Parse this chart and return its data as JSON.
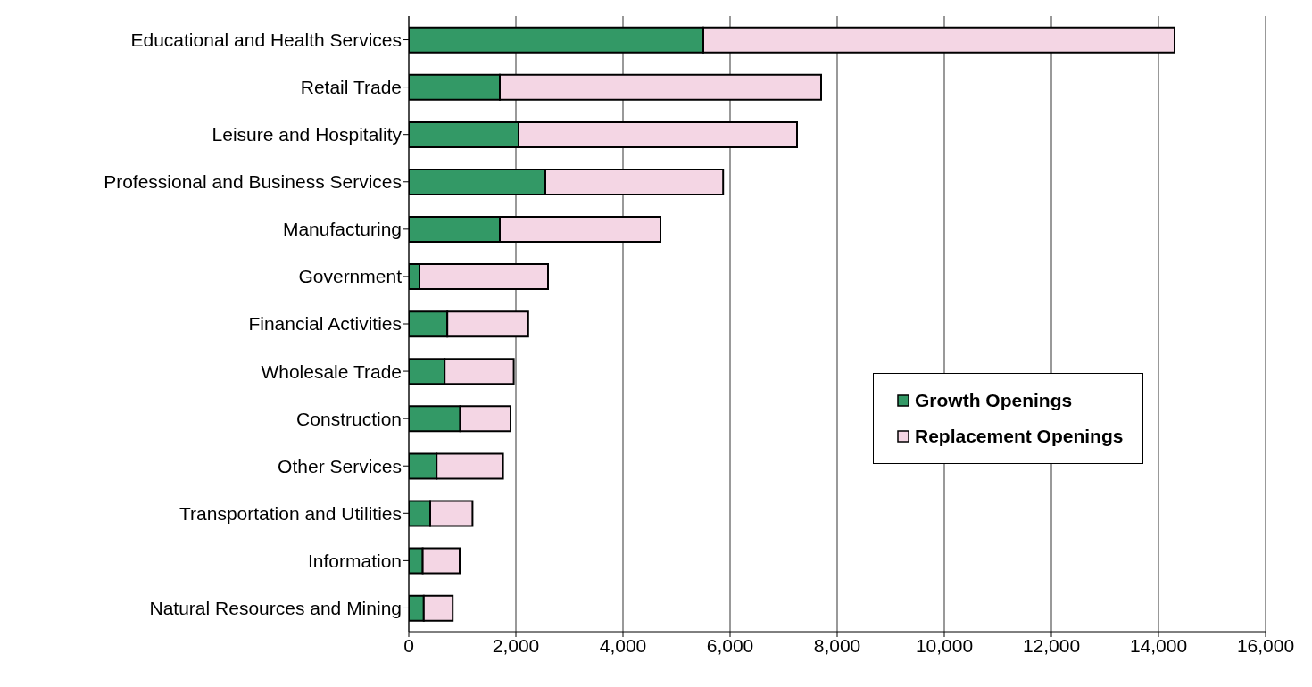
{
  "chart_data": {
    "type": "bar",
    "orientation": "horizontal",
    "stacked": true,
    "categories": [
      "Educational and Health Services",
      "Retail Trade",
      "Leisure and Hospitality",
      "Professional and Business Services",
      "Manufacturing",
      "Government",
      "Financial Activities",
      "Wholesale Trade",
      "Construction",
      "Other Services",
      "Transportation and Utilities",
      "Information",
      "Natural Resources and Mining"
    ],
    "series": [
      {
        "name": "Growth Openings",
        "color": "#339966",
        "values": [
          5500,
          1700,
          2050,
          2550,
          1700,
          200,
          720,
          670,
          960,
          520,
          400,
          260,
          280
        ]
      },
      {
        "name": "Replacement Openings",
        "color": "#f4d6e4",
        "values": [
          8800,
          6000,
          5200,
          3320,
          3000,
          2400,
          1510,
          1290,
          940,
          1240,
          790,
          690,
          540
        ]
      }
    ],
    "xlim": [
      0,
      16000
    ],
    "xticks": [
      0,
      {
        "value": 2000,
        "label": "2,000"
      },
      {
        "value": 4000,
        "label": "4,000"
      },
      {
        "value": 6000,
        "label": "6,000"
      },
      {
        "value": 8000,
        "label": "8,000"
      },
      {
        "value": 10000,
        "label": "10,000"
      },
      {
        "value": 12000,
        "label": "12,000"
      },
      {
        "value": 14000,
        "label": "14,000"
      },
      {
        "value": 16000,
        "label": "16,000"
      }
    ],
    "grid": "x",
    "legend": "right"
  }
}
